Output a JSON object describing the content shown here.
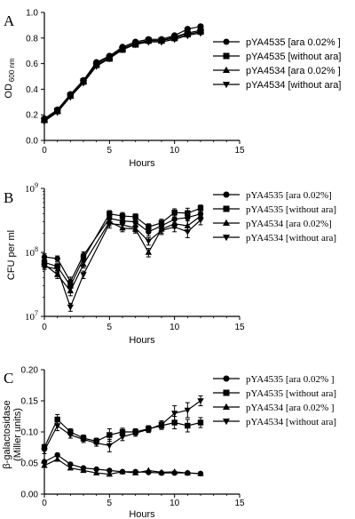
{
  "chart_data": [
    {
      "panel": "A",
      "type": "line",
      "xlabel": "Hours",
      "ylabel": "OD",
      "ylabel_sub": "600 nm",
      "xlim": [
        0,
        15
      ],
      "ylim": [
        0.0,
        1.0
      ],
      "x_ticks": [
        0,
        5,
        10,
        15
      ],
      "y_ticks": [
        "0.0",
        "0.2",
        "0.4",
        "0.6",
        "0.8",
        "1.0"
      ],
      "y_scale": "linear",
      "legend_position": "right",
      "series": [
        {
          "name": "pYA4535 [ara 0.02% ]",
          "marker": "circle",
          "x": [
            0,
            1,
            2,
            3,
            4,
            5,
            6,
            7,
            8,
            9,
            10,
            11,
            12
          ],
          "y": [
            0.17,
            0.24,
            0.36,
            0.47,
            0.61,
            0.66,
            0.73,
            0.77,
            0.79,
            0.79,
            0.82,
            0.87,
            0.89
          ]
        },
        {
          "name": "pYA4535 [without ara]",
          "marker": "square",
          "x": [
            0,
            1,
            2,
            3,
            4,
            5,
            6,
            7,
            8,
            9,
            10,
            11,
            12
          ],
          "y": [
            0.16,
            0.23,
            0.35,
            0.46,
            0.59,
            0.64,
            0.71,
            0.75,
            0.78,
            0.78,
            0.8,
            0.83,
            0.85
          ]
        },
        {
          "name": "pYA4534 [ara 0.02% ]",
          "marker": "triangle-up",
          "x": [
            0,
            1,
            2,
            3,
            4,
            5,
            6,
            7,
            8,
            9,
            10,
            11,
            12
          ],
          "y": [
            0.16,
            0.23,
            0.35,
            0.46,
            0.6,
            0.65,
            0.72,
            0.76,
            0.78,
            0.78,
            0.81,
            0.84,
            0.86
          ]
        },
        {
          "name": "pYA4534 [without ara]",
          "marker": "triangle-down",
          "x": [
            0,
            1,
            2,
            3,
            4,
            5,
            6,
            7,
            8,
            9,
            10,
            11,
            12
          ],
          "y": [
            0.15,
            0.22,
            0.34,
            0.45,
            0.58,
            0.64,
            0.71,
            0.75,
            0.77,
            0.77,
            0.79,
            0.82,
            0.84
          ]
        }
      ]
    },
    {
      "panel": "B",
      "type": "line",
      "xlabel": "Hours",
      "ylabel": "CFU per ml",
      "xlim": [
        0,
        15
      ],
      "ylim": [
        10000000,
        1000000000
      ],
      "x_ticks": [
        0,
        5,
        10,
        15
      ],
      "y_ticks": [
        {
          "value": 10000000,
          "base": "10",
          "exp": "7"
        },
        {
          "value": 100000000,
          "base": "10",
          "exp": "8"
        },
        {
          "value": 1000000000,
          "base": "10",
          "exp": "9"
        }
      ],
      "y_scale": "log",
      "legend_position": "right",
      "series": [
        {
          "name": "pYA4535 [ara 0.02%]",
          "marker": "circle",
          "x": [
            0,
            1,
            2,
            3,
            5,
            6,
            7,
            8,
            9,
            10,
            11,
            12
          ],
          "y": [
            85000000,
            80000000,
            35000000,
            90000000,
            340000000,
            310000000,
            300000000,
            210000000,
            260000000,
            330000000,
            350000000,
            400000000
          ],
          "err": [
            10000000,
            8000000,
            6000000,
            12000000,
            40000000,
            40000000,
            40000000,
            30000000,
            40000000,
            50000000,
            100000000,
            60000000
          ]
        },
        {
          "name": "pYA4535 [without ara]",
          "marker": "square",
          "x": [
            0,
            1,
            2,
            3,
            5,
            6,
            7,
            8,
            9,
            10,
            11,
            12
          ],
          "y": [
            70000000,
            60000000,
            30000000,
            80000000,
            400000000,
            370000000,
            360000000,
            250000000,
            290000000,
            420000000,
            410000000,
            490000000
          ],
          "err": [
            8000000,
            8000000,
            5000000,
            10000000,
            50000000,
            50000000,
            40000000,
            30000000,
            40000000,
            60000000,
            80000000,
            60000000
          ]
        },
        {
          "name": "pYA4534 [ara 0.02%]",
          "marker": "triangle-up",
          "x": [
            0,
            1,
            2,
            3,
            5,
            6,
            7,
            8,
            9,
            10,
            11,
            12
          ],
          "y": [
            65000000,
            45000000,
            25000000,
            65000000,
            300000000,
            240000000,
            230000000,
            100000000,
            230000000,
            280000000,
            260000000,
            370000000
          ],
          "err": [
            8000000,
            6000000,
            4000000,
            8000000,
            40000000,
            30000000,
            30000000,
            15000000,
            30000000,
            40000000,
            50000000,
            50000000
          ]
        },
        {
          "name": "pYA4534 [without ara]",
          "marker": "triangle-down",
          "x": [
            0,
            1,
            2,
            3,
            5,
            6,
            7,
            8,
            9,
            10,
            11,
            12
          ],
          "y": [
            60000000,
            55000000,
            14000000,
            45000000,
            280000000,
            270000000,
            240000000,
            150000000,
            220000000,
            250000000,
            210000000,
            320000000
          ],
          "err": [
            6000000,
            6000000,
            2000000,
            6000000,
            40000000,
            30000000,
            30000000,
            20000000,
            30000000,
            40000000,
            40000000,
            50000000
          ]
        }
      ]
    },
    {
      "panel": "C",
      "type": "line",
      "xlabel": "Hours",
      "ylabel": "β-galactosidase",
      "ylabel2": "(Miller units)",
      "xlim": [
        0,
        15
      ],
      "ylim": [
        0.0,
        0.2
      ],
      "x_ticks": [
        0,
        5,
        10,
        15
      ],
      "y_ticks": [
        "0.00",
        "0.05",
        "0.10",
        "0.15",
        "0.20"
      ],
      "y_scale": "linear",
      "legend_position": "right",
      "series": [
        {
          "name": "pYA4535 [ara 0.02% ]",
          "marker": "circle",
          "x": [
            0,
            1,
            2,
            3,
            4,
            5,
            6,
            7,
            8,
            9,
            10,
            11,
            12
          ],
          "y": [
            0.052,
            0.063,
            0.048,
            0.042,
            0.04,
            0.038,
            0.036,
            0.036,
            0.035,
            0.034,
            0.034,
            0.034,
            0.033
          ]
        },
        {
          "name": "pYA4535 [without ara]",
          "marker": "square",
          "x": [
            0,
            1,
            2,
            3,
            4,
            5,
            6,
            7,
            8,
            9,
            10,
            11,
            12
          ],
          "y": [
            0.075,
            0.12,
            0.1,
            0.09,
            0.085,
            0.095,
            0.1,
            0.1,
            0.105,
            0.11,
            0.115,
            0.11,
            0.115
          ],
          "err": [
            0.005,
            0.008,
            0.005,
            0.005,
            0.005,
            0.01,
            0.006,
            0.005,
            0.005,
            0.006,
            0.01,
            0.01,
            0.008
          ]
        },
        {
          "name": "pYA4534 [ara 0.02% ]",
          "marker": "triangle-up",
          "x": [
            0,
            1,
            2,
            3,
            4,
            5,
            6,
            7,
            8,
            9,
            10,
            11,
            12
          ],
          "y": [
            0.046,
            0.056,
            0.042,
            0.038,
            0.034,
            0.032,
            0.036,
            0.034,
            0.038,
            0.035,
            0.036,
            0.034,
            0.033
          ]
        },
        {
          "name": "pYA4534 [without ara]",
          "marker": "triangle-down",
          "x": [
            0,
            1,
            2,
            3,
            4,
            5,
            6,
            7,
            8,
            9,
            10,
            11,
            12
          ],
          "y": [
            0.07,
            0.11,
            0.095,
            0.088,
            0.082,
            0.078,
            0.092,
            0.098,
            0.104,
            0.112,
            0.13,
            0.135,
            0.15
          ],
          "err": [
            0.005,
            0.008,
            0.005,
            0.005,
            0.005,
            0.01,
            0.006,
            0.005,
            0.005,
            0.006,
            0.012,
            0.012,
            0.008
          ]
        }
      ]
    }
  ]
}
